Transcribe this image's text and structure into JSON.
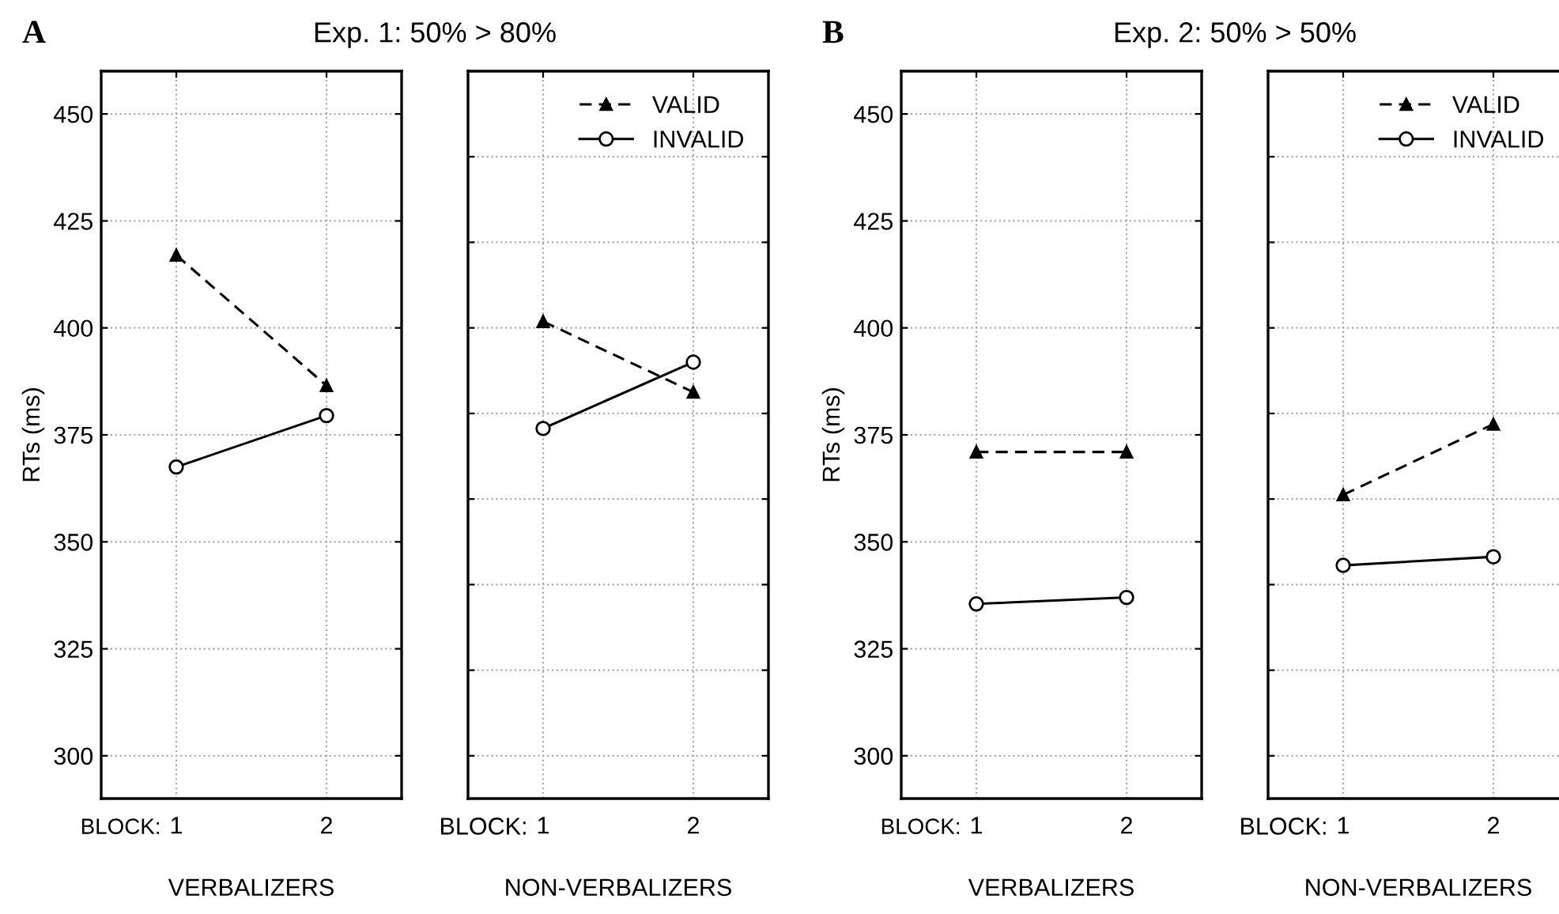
{
  "chart_data": [
    {
      "type": "line",
      "title": "Exp. 1: 50% > 80%",
      "ylabel": "RTs (ms)",
      "xlabel": "VERBALIZERS",
      "annotations": [
        "A",
        "BLOCK:"
      ],
      "categories": [
        "1",
        "2"
      ],
      "ylim": [
        290,
        460
      ],
      "yticks": [
        300,
        325,
        350,
        375,
        400,
        425,
        450
      ],
      "grid": true,
      "legend": false,
      "series": [
        {
          "color": "#000000",
          "marker": "triangle",
          "line_style": "dashed",
          "values": [
            417,
            386.5
          ]
        },
        {
          "color": "#000000",
          "marker": "circle",
          "line_style": "solid",
          "values": [
            367.5,
            379.5
          ]
        }
      ]
    },
    {
      "type": "line",
      "xlabel": "NON-VERBALIZERS",
      "annotations": [
        "BLOCK:"
      ],
      "categories": [
        "1",
        "2"
      ],
      "ylim": [
        290,
        460
      ],
      "tick_labels": "x",
      "grid": true,
      "legend": "top right",
      "series": [
        {
          "name": "VALID",
          "color": "#000000",
          "marker": "triangle",
          "line_style": "dashed",
          "values": [
            401.5,
            385
          ]
        },
        {
          "name": "INVALID",
          "color": "#000000",
          "marker": "circle",
          "line_style": "solid",
          "values": [
            376.5,
            392
          ]
        }
      ]
    },
    {
      "type": "line",
      "title": "Exp. 2: 50% > 50%",
      "ylabel": "RTs (ms)",
      "xlabel": "VERBALIZERS",
      "annotations": [
        "B",
        "BLOCK:"
      ],
      "categories": [
        "1",
        "2"
      ],
      "ylim": [
        290,
        460
      ],
      "yticks": [
        300,
        325,
        350,
        375,
        400,
        425,
        450
      ],
      "grid": true,
      "legend": false,
      "series": [
        {
          "color": "#000000",
          "marker": "triangle",
          "line_style": "dashed",
          "values": [
            371,
            371
          ]
        },
        {
          "color": "#000000",
          "marker": "circle",
          "line_style": "solid",
          "values": [
            335.5,
            337
          ]
        }
      ]
    },
    {
      "type": "line",
      "xlabel": "NON-VERBALIZERS",
      "annotations": [
        "BLOCK:"
      ],
      "categories": [
        "1",
        "2"
      ],
      "ylim": [
        290,
        460
      ],
      "tick_labels": "x",
      "grid": true,
      "legend": "top right",
      "series": [
        {
          "name": "VALID",
          "color": "#000000",
          "marker": "triangle",
          "line_style": "dashed",
          "values": [
            361,
            377.5
          ]
        },
        {
          "name": "INVALID",
          "color": "#000000",
          "marker": "circle",
          "line_style": "solid",
          "values": [
            344.5,
            346.5
          ]
        }
      ]
    }
  ]
}
